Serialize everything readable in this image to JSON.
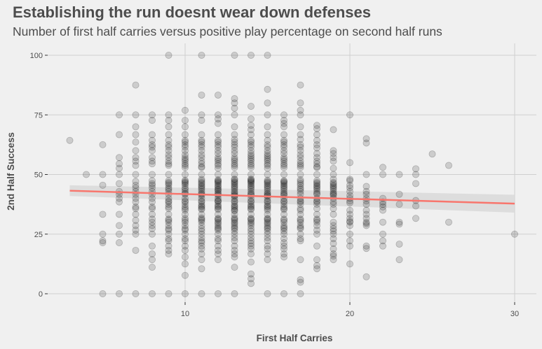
{
  "title": "Establishing the run doesnt wear down defenses",
  "subtitle": "Number of first half carries versus positive play percentage on second half runs",
  "chart_data": {
    "type": "scatter",
    "title": "Establishing the run doesnt wear down defenses",
    "subtitle": "Number of first half carries versus positive play percentage on second half runs",
    "xlabel": "First Half Carries",
    "ylabel": "2nd Half Success",
    "xlim": [
      2,
      31
    ],
    "ylim": [
      -4,
      104
    ],
    "x_ticks": [
      10,
      20,
      30
    ],
    "y_ticks": [
      0,
      25,
      50,
      75,
      100
    ],
    "grid": true,
    "legend": "none",
    "point_color": "#000000",
    "point_alpha": 0.15,
    "trend_line": {
      "method": "linear",
      "color": "#F8766D",
      "x_range": [
        3,
        30
      ],
      "y_start": 43.2,
      "y_end": 37.8,
      "ci_band_color": "#d9d9d9",
      "ci_start": [
        41,
        45.5
      ],
      "ci_end": [
        34,
        41.5
      ]
    },
    "columns": [
      {
        "x": 3,
        "y": [
          64.3
        ]
      },
      {
        "x": 4,
        "y": [
          50
        ]
      },
      {
        "x": 5,
        "y": [
          62.5,
          50,
          45.5,
          33.3,
          25,
          22.2,
          21.4,
          0
        ]
      },
      {
        "x": 6,
        "y": [
          75,
          66.7,
          57.1,
          54.5,
          52.6,
          50,
          46.2,
          42.9,
          41.7,
          40,
          38.5,
          33.3,
          28.6,
          25,
          21.4,
          0
        ]
      },
      {
        "x": 7,
        "y": [
          87.5,
          75,
          70,
          66.7,
          63.6,
          60,
          57.1,
          55.6,
          53.8,
          50,
          47.1,
          45.5,
          44.4,
          42.9,
          41.7,
          40,
          38.5,
          36.4,
          35.7,
          33.3,
          30.8,
          28.6,
          26.7,
          25,
          18.2,
          0
        ]
      },
      {
        "x": 8,
        "y": [
          75,
          72.7,
          66.7,
          64.3,
          62.5,
          61.5,
          60,
          57.1,
          55.6,
          54.5,
          50,
          47.4,
          46.2,
          45.5,
          44.4,
          42.9,
          41.7,
          40,
          38.5,
          36.4,
          35.7,
          33.3,
          31.3,
          30,
          28.6,
          27.3,
          25,
          20,
          16.7,
          14.3,
          11.1,
          0
        ]
      },
      {
        "x": 9,
        "y": [
          100,
          75,
          72.7,
          70,
          66.7,
          64.3,
          62.5,
          61.5,
          60,
          58.3,
          57.1,
          55.6,
          54.5,
          53.8,
          50,
          47.4,
          46.7,
          46.2,
          45.5,
          44.4,
          43.8,
          42.9,
          41.7,
          40,
          38.9,
          38.5,
          37.5,
          36.4,
          35.7,
          33.3,
          31.3,
          30.8,
          30,
          28.6,
          27.3,
          26.7,
          25,
          23.1,
          22.2,
          20,
          18.2,
          16.7,
          0
        ]
      },
      {
        "x": 10,
        "y": [
          76.9,
          72.7,
          70,
          66.7,
          64.3,
          63.6,
          62.5,
          61.5,
          60,
          58.3,
          57.1,
          56.3,
          55.6,
          54.5,
          53.8,
          52.9,
          50,
          47.6,
          47.1,
          46.7,
          46.2,
          45.5,
          44.4,
          43.8,
          42.9,
          42.1,
          41.7,
          40,
          38.9,
          38.5,
          37.5,
          36.4,
          35.7,
          35,
          33.3,
          31.6,
          30.8,
          30,
          28.6,
          27.3,
          26.7,
          25,
          23.1,
          22.2,
          20,
          18.2,
          15.4,
          12.5,
          7.7,
          0
        ]
      },
      {
        "x": 11,
        "y": [
          100,
          83.3,
          75,
          72.7,
          66.7,
          64.3,
          63.6,
          62.5,
          61.5,
          60,
          58.3,
          57.1,
          55.6,
          54.5,
          53.3,
          52.9,
          50,
          48,
          47.4,
          46.7,
          46.2,
          45.5,
          45,
          44.4,
          43.8,
          42.9,
          42.1,
          41.7,
          41.2,
          40,
          38.9,
          38.5,
          37.5,
          36.8,
          36.4,
          35.7,
          35.3,
          33.3,
          31.8,
          31.3,
          30.8,
          30,
          28.6,
          27.3,
          26.3,
          25,
          23.5,
          22.2,
          21.4,
          20,
          18.8,
          16.7,
          14.3,
          10.5,
          0
        ]
      },
      {
        "x": 12,
        "y": [
          83.3,
          75,
          73.3,
          71.4,
          66.7,
          64.3,
          63.6,
          62.5,
          61.5,
          60,
          58.8,
          57.1,
          56.3,
          55.6,
          54.5,
          53.8,
          52.6,
          50,
          47.8,
          47.4,
          47.1,
          46.7,
          46.2,
          45.5,
          45,
          44.4,
          43.8,
          43.5,
          42.9,
          42.1,
          41.7,
          41.2,
          40,
          39.1,
          38.9,
          38.5,
          37.5,
          36.8,
          36.4,
          35.7,
          35.3,
          33.3,
          31.6,
          31.3,
          30.8,
          30,
          29.4,
          28.6,
          27.8,
          27.3,
          26.7,
          25,
          23.1,
          22.2,
          20,
          18.2,
          16.7,
          14.3,
          0
        ]
      },
      {
        "x": 13,
        "y": [
          100,
          81.8,
          80,
          77.8,
          75,
          70,
          66.7,
          64.7,
          63.6,
          62.5,
          61.5,
          60,
          58.8,
          57.1,
          56.3,
          55.6,
          54.5,
          53.8,
          52.9,
          50,
          48.1,
          47.8,
          47.1,
          46.7,
          46.2,
          45.5,
          45,
          44.4,
          43.8,
          42.9,
          42.3,
          41.7,
          41.2,
          40.9,
          40,
          38.9,
          38.5,
          37.5,
          36.8,
          36.4,
          35.7,
          35,
          34.8,
          33.3,
          31.8,
          31.3,
          30.8,
          30,
          29.4,
          28.6,
          27.8,
          27.3,
          26.3,
          25,
          23.5,
          22.2,
          20,
          18.2,
          16.7,
          15.4,
          11.1,
          0
        ]
      },
      {
        "x": 14,
        "y": [
          100,
          78.6,
          73.3,
          70.6,
          68.8,
          66.7,
          64.3,
          63.6,
          62.5,
          61.5,
          60,
          58.8,
          57.9,
          57.1,
          56.3,
          55.6,
          54.5,
          53.8,
          52.9,
          50,
          48.1,
          47.8,
          47.4,
          47.1,
          46.7,
          46.2,
          45.5,
          45,
          44.4,
          43.8,
          42.9,
          42.1,
          41.7,
          41.2,
          40,
          38.9,
          38.5,
          37.5,
          36.8,
          36.4,
          35.7,
          35.3,
          33.3,
          31.6,
          31.3,
          30.8,
          30,
          29.4,
          28.6,
          27.3,
          26.3,
          25,
          23.5,
          22.2,
          21.1,
          20,
          18.8,
          16.7,
          13.3,
          8.3,
          6.3,
          4.3
        ]
      },
      {
        "x": 15,
        "y": [
          100,
          85.7,
          80,
          75,
          70,
          66.7,
          64.3,
          62.5,
          61.5,
          60,
          58.8,
          57.9,
          57.1,
          56.3,
          55.6,
          54.5,
          53.8,
          52.6,
          50,
          47.6,
          47.1,
          46.7,
          46.2,
          45.5,
          45,
          44.4,
          43.8,
          42.9,
          42.1,
          41.7,
          41.2,
          40.9,
          40,
          38.9,
          38.5,
          37.5,
          36.8,
          36.4,
          35.7,
          35,
          33.3,
          31.6,
          31.3,
          30.8,
          30,
          29.4,
          28.6,
          27.8,
          27.3,
          26.3,
          25,
          23.5,
          22.2,
          20,
          18.8,
          16.7,
          14.3,
          0
        ]
      },
      {
        "x": 16,
        "y": [
          75,
          72.7,
          71.4,
          70,
          66.7,
          64.3,
          63.6,
          62.5,
          61.5,
          60,
          58.8,
          57.1,
          56.3,
          55.6,
          54.5,
          53.8,
          52.9,
          50,
          47.4,
          47.1,
          46.7,
          46.2,
          45.5,
          45,
          44.4,
          43.8,
          42.9,
          42.1,
          41.7,
          41.2,
          40,
          38.9,
          38.5,
          37.5,
          36.4,
          35.7,
          35.3,
          33.3,
          31.3,
          30.8,
          30,
          28.6,
          27.8,
          27.3,
          26.3,
          25,
          23.1,
          21.4,
          20,
          18.8,
          16.7,
          15.4,
          0
        ]
      },
      {
        "x": 17,
        "y": [
          87.5,
          80,
          76.9,
          75,
          70,
          66.7,
          64.7,
          62.5,
          61.5,
          60,
          58.3,
          57.1,
          55.6,
          54.5,
          53.8,
          52.9,
          50,
          47.8,
          47.1,
          46.2,
          45.5,
          44.4,
          43.8,
          42.9,
          41.7,
          40,
          38.9,
          38.5,
          37.5,
          35.7,
          35,
          33.3,
          31.3,
          30.8,
          30,
          28.6,
          27.8,
          27.3,
          25,
          23.1,
          22.2,
          14.3,
          5.9,
          4.8,
          0
        ]
      },
      {
        "x": 18,
        "y": [
          70.6,
          69.2,
          66.7,
          64.3,
          62.5,
          61.1,
          58.8,
          57.1,
          55.6,
          54.5,
          53.3,
          52.9,
          50,
          47.4,
          46.7,
          46.2,
          45.5,
          45,
          44.4,
          43.8,
          42.9,
          42.1,
          41.7,
          40,
          38.9,
          38.5,
          37.5,
          35.7,
          33.3,
          31.3,
          30.8,
          30,
          28.6,
          26.7,
          25,
          20,
          14.3,
          11.8,
          10.5
        ]
      },
      {
        "x": 19,
        "y": [
          68.8,
          60,
          58.8,
          57.1,
          55.6,
          52.6,
          50,
          48,
          46.7,
          46.2,
          45.5,
          45,
          44.4,
          43.8,
          42.9,
          42.1,
          41.7,
          41.2,
          40,
          38.5,
          37.5,
          35.7,
          33.3,
          30,
          28.6,
          27.3,
          26.3,
          25,
          23.1,
          21.1,
          18.8,
          16.7,
          15.8,
          14.3
        ]
      },
      {
        "x": 20,
        "y": [
          75,
          55,
          48,
          47.4,
          45.5,
          44.4,
          42.9,
          41.2,
          40,
          38.9,
          38.1,
          35,
          33.3,
          31.6,
          30.4,
          30,
          28.6,
          25,
          22.2,
          20,
          12.5
        ]
      },
      {
        "x": 21,
        "y": [
          65,
          63.2,
          50,
          45,
          42.9,
          41.7,
          40,
          38.9,
          37.5,
          35,
          33.3,
          31.6,
          30,
          29.4,
          28.6,
          20,
          19,
          7.1
        ]
      },
      {
        "x": 22,
        "y": [
          53,
          50,
          40,
          38.5,
          37.5,
          36.4,
          35,
          30,
          25,
          22.2,
          20
        ]
      },
      {
        "x": 23,
        "y": [
          50,
          41.7,
          37.5,
          30,
          29.2,
          20.8,
          14.3
        ]
      },
      {
        "x": 24,
        "y": [
          52.4,
          50,
          46.2,
          39.1,
          36.8,
          31.6
        ]
      },
      {
        "x": 25,
        "y": [
          58.6
        ]
      },
      {
        "x": 26,
        "y": [
          53.8,
          30
        ]
      },
      {
        "x": 30,
        "y": [
          25
        ]
      }
    ]
  }
}
